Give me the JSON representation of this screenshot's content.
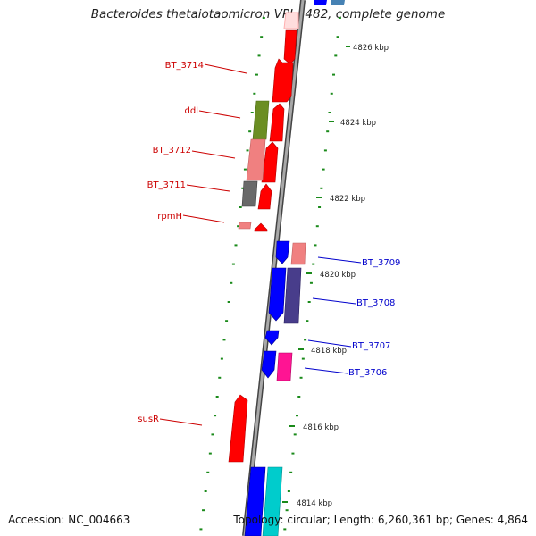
{
  "title": "Bacteroides thetaiotaomicron VPI-5482, complete genome",
  "accession_text": "Accession: NC_004663",
  "summary_text": "Topology: circular; Length: 6,260,361 bp; Genes: 4,864",
  "scale_labels": [
    "4826 kbp",
    "4824 kbp",
    "4822 kbp",
    "4820 kbp",
    "4818 kbp",
    "4816 kbp",
    "4814 kbp"
  ],
  "gene_labels_left": [
    "BT_3714",
    "ddl",
    "BT_3712",
    "BT_3711",
    "rpmH",
    "susR"
  ],
  "gene_labels_right": [
    "BT_3709",
    "BT_3708",
    "BT_3707",
    "BT_3706"
  ],
  "colors": {
    "forward_label": "#cc0000",
    "reverse_label": "#0000cc",
    "red": "#ff0000",
    "blue": "#0000ff",
    "olive": "#6b8e23",
    "pink": "#f08080",
    "gray": "#696969",
    "slate": "#483d8b",
    "magenta": "#ff1493",
    "cyan": "#00cccc",
    "steel": "#4682b4",
    "tick": "#1a8a1a",
    "backbone": "#888888"
  }
}
